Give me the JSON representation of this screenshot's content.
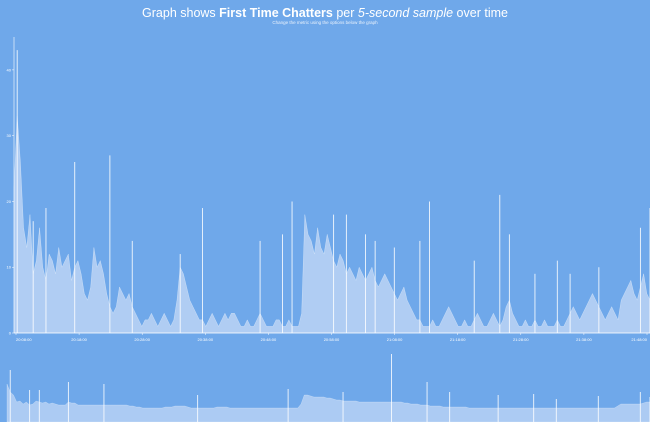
{
  "colors": {
    "background": "#6fa8ea",
    "area": "#c6daf6",
    "spike": "#ffffff",
    "axis": "#ffffff"
  },
  "header": {
    "title_pre": "Graph shows ",
    "title_metric": "First Time Chatters",
    "title_mid": " per ",
    "title_sample": "5-second sample",
    "title_post": " over time",
    "subtitle": "Change the metric using the options below the graph"
  },
  "chart_data": [
    {
      "type": "area",
      "role": "main",
      "series_name": "First Time Chatters",
      "ylim": [
        0,
        45
      ],
      "yticks": [
        0,
        10,
        20,
        30,
        40
      ],
      "x_ticks": [
        "20:08:00",
        "20:18:00",
        "20:28:00",
        "20:38:00",
        "20:48:00",
        "20:58:00",
        "21:08:00",
        "21:18:00",
        "21:28:00",
        "21:38:00",
        "21:48:00"
      ],
      "grid": false,
      "values": [
        22,
        33,
        26,
        16,
        13,
        18,
        9,
        11,
        16,
        10,
        8,
        12,
        11,
        9,
        13,
        10,
        11,
        12,
        8,
        10,
        11,
        9,
        6,
        5,
        7,
        13,
        10,
        11,
        9,
        6,
        4,
        3,
        4,
        7,
        6,
        5,
        6,
        4,
        3,
        2,
        1,
        2,
        2,
        3,
        2,
        1,
        2,
        3,
        2,
        1,
        2,
        5,
        10,
        9,
        7,
        5,
        4,
        3,
        2,
        2,
        1,
        2,
        3,
        2,
        1,
        2,
        3,
        2,
        3,
        3,
        2,
        1,
        1,
        2,
        1,
        1,
        2,
        3,
        2,
        1,
        1,
        1,
        2,
        2,
        1,
        1,
        2,
        1,
        1,
        1,
        3,
        18,
        15,
        14,
        12,
        16,
        13,
        12,
        15,
        13,
        11,
        10,
        12,
        11,
        9,
        10,
        9,
        8,
        10,
        9,
        8,
        9,
        10,
        8,
        7,
        8,
        9,
        8,
        7,
        6,
        5,
        6,
        7,
        5,
        4,
        3,
        2,
        2,
        1,
        1,
        1,
        2,
        1,
        1,
        2,
        3,
        4,
        3,
        2,
        1,
        1,
        2,
        1,
        1,
        2,
        3,
        2,
        1,
        1,
        2,
        3,
        2,
        1,
        2,
        4,
        5,
        3,
        2,
        1,
        1,
        2,
        1,
        1,
        2,
        1,
        1,
        2,
        1,
        1,
        1,
        2,
        1,
        1,
        2,
        3,
        4,
        3,
        2,
        3,
        4,
        5,
        6,
        5,
        4,
        3,
        2,
        3,
        4,
        3,
        2,
        5,
        6,
        7,
        8,
        6,
        5,
        7,
        9,
        6,
        5
      ],
      "spikes": [
        [
          1,
          43
        ],
        [
          6,
          17
        ],
        [
          10,
          19
        ],
        [
          19,
          26
        ],
        [
          30,
          27
        ],
        [
          37,
          14
        ],
        [
          52,
          12
        ],
        [
          59,
          19
        ],
        [
          77,
          14
        ],
        [
          84,
          15
        ],
        [
          87,
          20
        ],
        [
          100,
          18
        ],
        [
          104,
          18
        ],
        [
          110,
          15
        ],
        [
          113,
          14
        ],
        [
          119,
          13
        ],
        [
          127,
          14
        ],
        [
          130,
          20
        ],
        [
          144,
          11
        ],
        [
          152,
          21
        ],
        [
          155,
          15
        ],
        [
          163,
          9
        ],
        [
          170,
          11
        ],
        [
          174,
          9
        ],
        [
          183,
          10
        ],
        [
          196,
          16
        ],
        [
          199,
          19
        ]
      ]
    },
    {
      "type": "area",
      "role": "navigator",
      "values": [
        38,
        30,
        27,
        20,
        21,
        18,
        20,
        17,
        18,
        21,
        20,
        19,
        20,
        18,
        19,
        18,
        17,
        17,
        17,
        20,
        19,
        19,
        17,
        17,
        17,
        17,
        17,
        17,
        17,
        17,
        17,
        17,
        17,
        17,
        17,
        17,
        17,
        17,
        16,
        16,
        15,
        15,
        14,
        14,
        14,
        14,
        14,
        14,
        14,
        15,
        15,
        15,
        16,
        16,
        16,
        16,
        15,
        14,
        14,
        14,
        14,
        14,
        14,
        14,
        14,
        15,
        15,
        15,
        15,
        14,
        14,
        14,
        14,
        14,
        14,
        14,
        14,
        14,
        14,
        14,
        14,
        14,
        14,
        14,
        14,
        14,
        14,
        14,
        14,
        14,
        14,
        18,
        27,
        27,
        26,
        25,
        25,
        25,
        25,
        24,
        24,
        23,
        22,
        22,
        21,
        21,
        21,
        21,
        21,
        20,
        20,
        20,
        20,
        20,
        20,
        20,
        20,
        20,
        20,
        20,
        20,
        20,
        20,
        19,
        19,
        18,
        18,
        18,
        17,
        17,
        17,
        16,
        16,
        16,
        16,
        15,
        15,
        15,
        15,
        15,
        15,
        15,
        15,
        14,
        14,
        14,
        14,
        14,
        14,
        14,
        14,
        14,
        14,
        14,
        14,
        14,
        14,
        14,
        14,
        14,
        14,
        14,
        14,
        14,
        14,
        14,
        14,
        14,
        14,
        14,
        14,
        14,
        14,
        14,
        14,
        14,
        14,
        14,
        14,
        14,
        14,
        14,
        14,
        14,
        14,
        14,
        14,
        14,
        14,
        16,
        18,
        18,
        18,
        18,
        18,
        18,
        18,
        19,
        20,
        20
      ],
      "spikes": [
        [
          1,
          52
        ],
        [
          7,
          32
        ],
        [
          10,
          32
        ],
        [
          19,
          40
        ],
        [
          30,
          38
        ],
        [
          59,
          27
        ],
        [
          87,
          33
        ],
        [
          104,
          30
        ],
        [
          119,
          68
        ],
        [
          130,
          40
        ],
        [
          137,
          30
        ],
        [
          152,
          27
        ],
        [
          163,
          28
        ],
        [
          170,
          23
        ],
        [
          183,
          26
        ],
        [
          196,
          30
        ],
        [
          199,
          25
        ]
      ]
    }
  ]
}
